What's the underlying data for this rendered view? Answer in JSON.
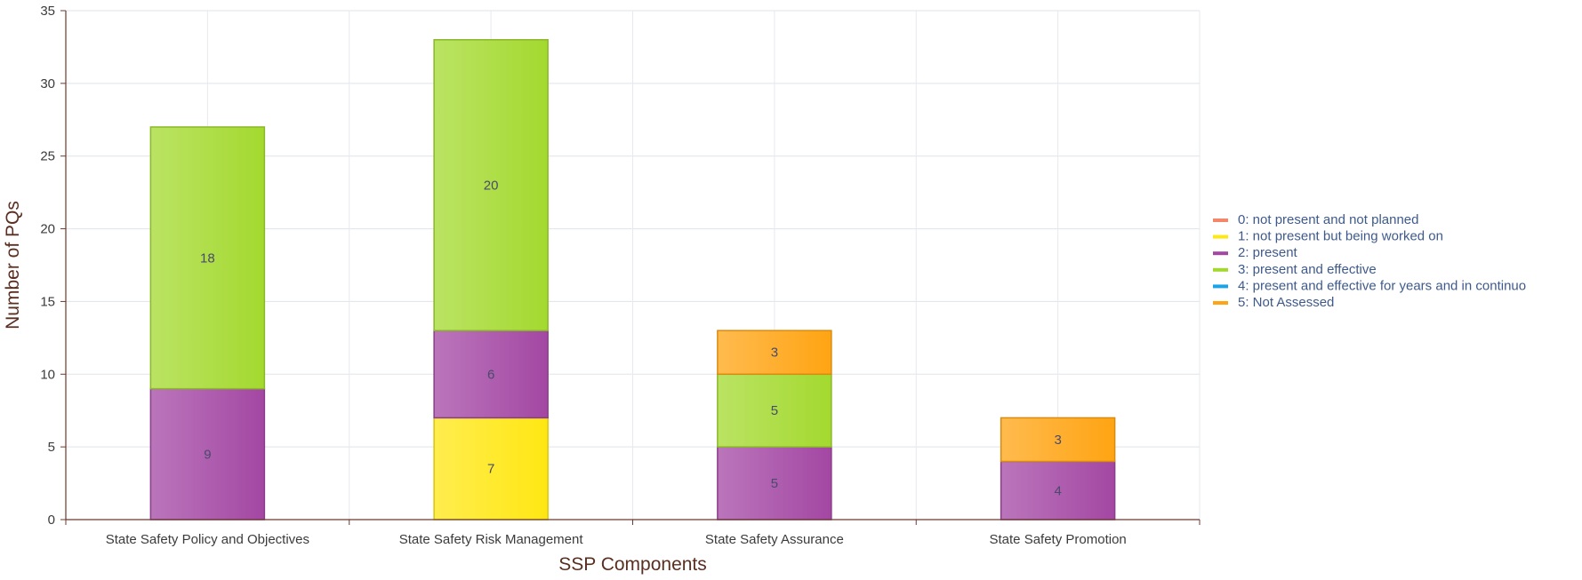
{
  "chart_data": {
    "type": "bar",
    "stacked": true,
    "xlabel": "SSP Components",
    "ylabel": "Number of PQs",
    "ylim": [
      0,
      35
    ],
    "yticks": [
      0,
      5,
      10,
      15,
      20,
      25,
      30,
      35
    ],
    "grid": true,
    "legend_position": "right",
    "categories": [
      "State Safety Policy and Objectives",
      "State Safety Risk Management",
      "State Safety Assurance",
      "State Safety Promotion"
    ],
    "series": [
      {
        "name": "0: not present and not planned",
        "color": "#f4876a",
        "values": [
          0,
          0,
          0,
          0
        ]
      },
      {
        "name": "1: not present but being worked on",
        "color": "#ffe713",
        "values": [
          0,
          7,
          0,
          0
        ]
      },
      {
        "name": "2: present",
        "color": "#a347a3",
        "values": [
          9,
          6,
          5,
          4
        ]
      },
      {
        "name": "3: present and effective",
        "color": "#a3d92f",
        "values": [
          18,
          20,
          5,
          0
        ]
      },
      {
        "name": "4: present and effective for years and in continuo",
        "color": "#1aa3e6",
        "values": [
          0,
          0,
          0,
          0
        ]
      },
      {
        "name": "5: Not Assessed",
        "color": "#ffa413",
        "values": [
          0,
          0,
          3,
          3
        ]
      }
    ]
  }
}
